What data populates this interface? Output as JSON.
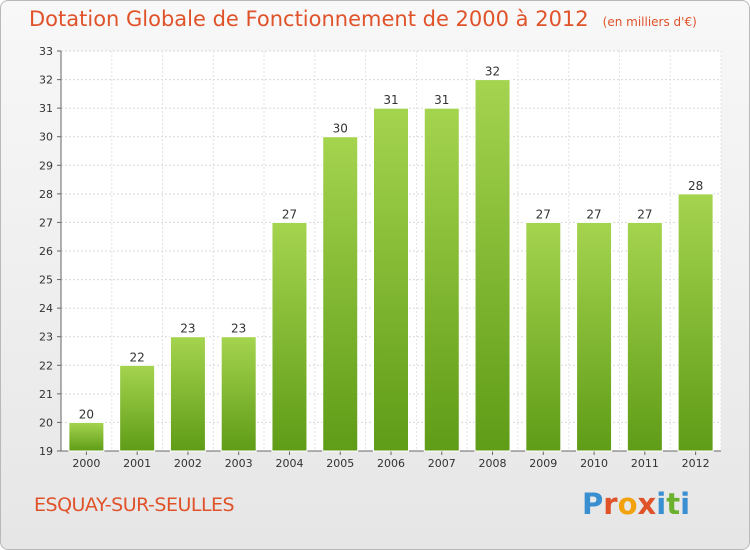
{
  "header": {
    "title": "Dotation Globale de Fonctionnement de 2000 à 2012",
    "unit": "(en milliers d'€)"
  },
  "footer": {
    "commune": "ESQUAY-SUR-SEULLES",
    "logo_letters": [
      "P",
      "r",
      "o",
      "x",
      "i",
      "t",
      "i"
    ],
    "logo_colors": [
      "#3a8fd1",
      "#e0532a",
      "#f2a20c",
      "#e0532a",
      "#3a8fd1",
      "#6bb02e",
      "#3a8fd1"
    ]
  },
  "chart_data": {
    "type": "bar",
    "title": "Dotation Globale de Fonctionnement de 2000 à 2012",
    "subtitle": "(en milliers d'€)",
    "categories": [
      "2000",
      "2001",
      "2002",
      "2003",
      "2004",
      "2005",
      "2006",
      "2007",
      "2008",
      "2009",
      "2010",
      "2011",
      "2012"
    ],
    "values": [
      20,
      22,
      23,
      23,
      27,
      30,
      31,
      31,
      32,
      27,
      27,
      27,
      28
    ],
    "ylim": [
      19,
      33
    ],
    "yticks": [
      19,
      20,
      21,
      22,
      23,
      24,
      25,
      26,
      27,
      28,
      29,
      30,
      31,
      32,
      33
    ],
    "grid": true,
    "bar_color": "#7cbb2e",
    "bar_color_light": "#a5d44f",
    "bar_color_dark": "#5f9c17",
    "xlabel": "",
    "ylabel": ""
  }
}
